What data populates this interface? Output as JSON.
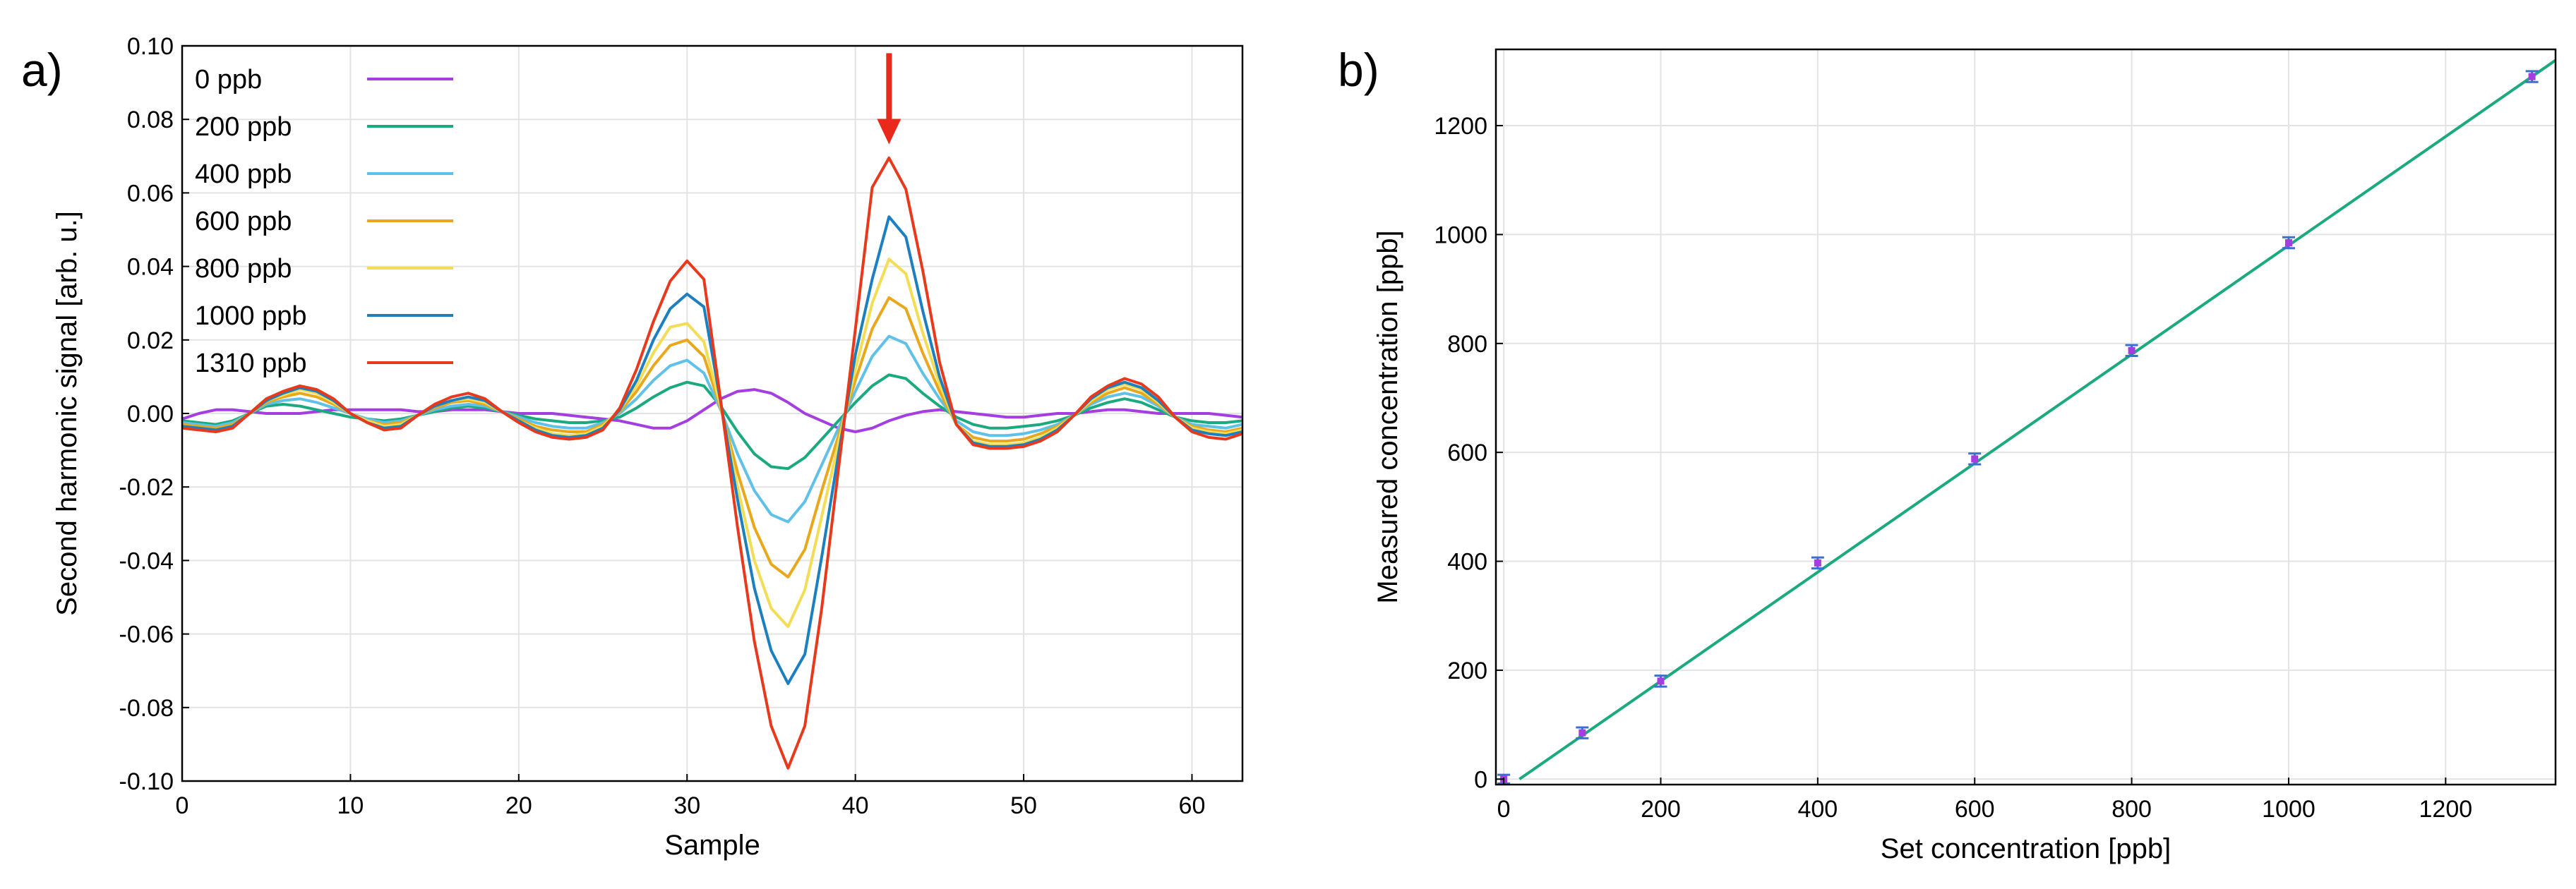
{
  "chart_data": [
    {
      "type": "line",
      "panel_label": "a)",
      "title": "",
      "xlabel": "Sample",
      "ylabel": "Second harmonic signal [arb. u.]",
      "xlim": [
        0,
        63
      ],
      "ylim": [
        -0.1,
        0.1
      ],
      "xticks": [
        0,
        10,
        20,
        30,
        40,
        50,
        60
      ],
      "xtick_labels": [
        "0",
        "10",
        "20",
        "30",
        "40",
        "50",
        "60"
      ],
      "yticks": [
        -0.1,
        -0.08,
        -0.06,
        -0.04,
        -0.02,
        0.0,
        0.02,
        0.04,
        0.06,
        0.08,
        0.1
      ],
      "ytick_labels": [
        "-0.10",
        "-0.08",
        "-0.06",
        "-0.04",
        "-0.02",
        "0.00",
        "0.02",
        "0.04",
        "0.06",
        "0.08",
        "0.10"
      ],
      "grid": true,
      "legend_position": "top-left",
      "annotation": {
        "type": "arrow",
        "color": "#e8291c",
        "x": 42,
        "y_from": 0.098,
        "y_to": 0.074
      },
      "x": [
        0,
        1,
        2,
        3,
        4,
        5,
        6,
        7,
        8,
        9,
        10,
        11,
        12,
        13,
        14,
        15,
        16,
        17,
        18,
        19,
        20,
        21,
        22,
        23,
        24,
        25,
        26,
        27,
        28,
        29,
        30,
        31,
        32,
        33,
        34,
        35,
        36,
        37,
        38,
        39,
        40,
        41,
        42,
        43,
        44,
        45,
        46,
        47,
        48,
        49,
        50,
        51,
        52,
        53,
        54,
        55,
        56,
        57,
        58,
        59,
        60,
        61,
        62,
        63
      ],
      "series": [
        {
          "name": "0 ppb",
          "color": "#a53ee0",
          "values": [
            -0.0015,
            0.0,
            0.001,
            0.001,
            0.0005,
            0.0,
            0.0,
            0.0,
            0.0005,
            0.001,
            0.001,
            0.001,
            0.001,
            0.001,
            0.0005,
            0.0005,
            0.001,
            0.001,
            0.001,
            0.0005,
            0.0,
            0.0,
            0.0,
            -0.0005,
            -0.001,
            -0.0015,
            -0.002,
            -0.003,
            -0.004,
            -0.004,
            -0.002,
            0.001,
            0.004,
            0.006,
            0.0065,
            0.0055,
            0.003,
            0.0,
            -0.002,
            -0.004,
            -0.005,
            -0.004,
            -0.002,
            -0.0005,
            0.0005,
            0.001,
            0.0005,
            0.0,
            -0.0005,
            -0.001,
            -0.001,
            -0.0005,
            0.0,
            0.0,
            0.0005,
            0.001,
            0.001,
            0.0005,
            0.0,
            0.0,
            0.0,
            0.0,
            -0.0005,
            -0.001
          ]
        },
        {
          "name": "200 ppb",
          "color": "#1ba97f",
          "values": [
            -0.002,
            -0.0025,
            -0.003,
            -0.002,
            0.0,
            0.002,
            0.0025,
            0.002,
            0.001,
            0.0,
            -0.001,
            -0.0015,
            -0.002,
            -0.0015,
            -0.0005,
            0.0005,
            0.0015,
            0.002,
            0.0015,
            0.0005,
            -0.0005,
            -0.0015,
            -0.002,
            -0.0025,
            -0.0025,
            -0.002,
            -0.001,
            0.0015,
            0.0045,
            0.007,
            0.0085,
            0.0075,
            0.002,
            -0.005,
            -0.011,
            -0.0145,
            -0.015,
            -0.012,
            -0.007,
            -0.002,
            0.003,
            0.0075,
            0.0105,
            0.0095,
            0.0055,
            0.002,
            -0.001,
            -0.003,
            -0.004,
            -0.004,
            -0.0035,
            -0.003,
            -0.002,
            -0.0005,
            0.0015,
            0.003,
            0.004,
            0.003,
            0.001,
            -0.001,
            -0.002,
            -0.0025,
            -0.0025,
            -0.002
          ]
        },
        {
          "name": "400 ppb",
          "color": "#5fc0e8",
          "values": [
            -0.0025,
            -0.003,
            -0.0035,
            -0.0025,
            0.0,
            0.0025,
            0.0035,
            0.004,
            0.003,
            0.0015,
            0.0,
            -0.0015,
            -0.0025,
            -0.002,
            -0.0005,
            0.001,
            0.002,
            0.0025,
            0.002,
            0.0005,
            -0.001,
            -0.0025,
            -0.0035,
            -0.004,
            -0.004,
            -0.0025,
            0.0,
            0.004,
            0.009,
            0.013,
            0.0145,
            0.011,
            0.001,
            -0.011,
            -0.021,
            -0.0275,
            -0.0295,
            -0.024,
            -0.014,
            -0.004,
            0.006,
            0.0155,
            0.021,
            0.019,
            0.011,
            0.004,
            -0.002,
            -0.005,
            -0.006,
            -0.006,
            -0.0055,
            -0.0045,
            -0.003,
            -0.0005,
            0.0025,
            0.0045,
            0.0055,
            0.0045,
            0.002,
            -0.001,
            -0.003,
            -0.0035,
            -0.004,
            -0.003
          ]
        },
        {
          "name": "600 ppb",
          "color": "#e9a81c",
          "values": [
            -0.003,
            -0.0035,
            -0.004,
            -0.003,
            0.0,
            0.003,
            0.0045,
            0.0055,
            0.0045,
            0.0025,
            0.0,
            -0.002,
            -0.003,
            -0.0025,
            -0.0005,
            0.0015,
            0.003,
            0.0035,
            0.0025,
            0.0005,
            -0.0015,
            -0.0035,
            -0.0045,
            -0.005,
            -0.005,
            -0.003,
            0.0005,
            0.006,
            0.013,
            0.0185,
            0.02,
            0.0155,
            0.0015,
            -0.016,
            -0.031,
            -0.041,
            -0.0445,
            -0.037,
            -0.021,
            -0.006,
            0.009,
            0.023,
            0.0315,
            0.0285,
            0.0165,
            0.006,
            -0.003,
            -0.0065,
            -0.0075,
            -0.0075,
            -0.007,
            -0.0055,
            -0.0035,
            -0.0005,
            0.003,
            0.0055,
            0.007,
            0.0055,
            0.0025,
            -0.001,
            -0.0035,
            -0.0045,
            -0.005,
            -0.004
          ]
        },
        {
          "name": "800 ppb",
          "color": "#f2dd55",
          "values": [
            -0.0035,
            -0.004,
            -0.0045,
            -0.0035,
            0.0,
            0.0035,
            0.005,
            0.0065,
            0.0055,
            0.003,
            0.0,
            -0.002,
            -0.0035,
            -0.003,
            -0.0005,
            0.002,
            0.0035,
            0.004,
            0.003,
            0.0005,
            -0.002,
            -0.004,
            -0.0055,
            -0.006,
            -0.0055,
            -0.0035,
            0.001,
            0.0075,
            0.0165,
            0.0235,
            0.0245,
            0.0195,
            0.002,
            -0.02,
            -0.04,
            -0.053,
            -0.058,
            -0.048,
            -0.028,
            -0.008,
            0.012,
            0.03,
            0.042,
            0.038,
            0.022,
            0.008,
            -0.003,
            -0.0075,
            -0.0085,
            -0.0085,
            -0.008,
            -0.0065,
            -0.004,
            -0.0005,
            0.0035,
            0.0065,
            0.008,
            0.0065,
            0.003,
            -0.001,
            -0.004,
            -0.005,
            -0.0055,
            -0.0045
          ]
        },
        {
          "name": "1000 ppb",
          "color": "#1c7fc0",
          "values": [
            -0.0035,
            -0.004,
            -0.0045,
            -0.0035,
            0.0,
            0.0035,
            0.0055,
            0.007,
            0.006,
            0.0035,
            0.0,
            -0.0025,
            -0.004,
            -0.0035,
            -0.0005,
            0.002,
            0.0035,
            0.0045,
            0.0035,
            0.0005,
            -0.002,
            -0.0045,
            -0.006,
            -0.0065,
            -0.006,
            -0.004,
            0.001,
            0.009,
            0.02,
            0.0285,
            0.0325,
            0.029,
            0.003,
            -0.0235,
            -0.0475,
            -0.0645,
            -0.0735,
            -0.0655,
            -0.039,
            -0.011,
            0.016,
            0.0365,
            0.0535,
            0.048,
            0.028,
            0.01,
            -0.003,
            -0.008,
            -0.009,
            -0.009,
            -0.0085,
            -0.007,
            -0.0045,
            -0.0005,
            0.004,
            0.007,
            0.0085,
            0.007,
            0.0035,
            -0.001,
            -0.0045,
            -0.0055,
            -0.006,
            -0.005
          ]
        },
        {
          "name": "1310 ppb",
          "color": "#e8391c",
          "values": [
            -0.004,
            -0.0045,
            -0.005,
            -0.004,
            0.0,
            0.004,
            0.006,
            0.0075,
            0.0065,
            0.004,
            0.0,
            -0.0025,
            -0.0045,
            -0.004,
            -0.0005,
            0.0025,
            0.0045,
            0.0055,
            0.004,
            0.0005,
            -0.0025,
            -0.005,
            -0.0065,
            -0.007,
            -0.0065,
            -0.0045,
            0.0015,
            0.012,
            0.025,
            0.036,
            0.0415,
            0.0365,
            0.0035,
            -0.031,
            -0.062,
            -0.085,
            -0.0965,
            -0.085,
            -0.053,
            -0.015,
            0.023,
            0.0615,
            0.0695,
            0.061,
            0.039,
            0.014,
            -0.003,
            -0.0085,
            -0.0095,
            -0.0095,
            -0.009,
            -0.0075,
            -0.005,
            -0.0005,
            0.0045,
            0.0075,
            0.0095,
            0.008,
            0.0045,
            -0.001,
            -0.005,
            -0.0065,
            -0.007,
            -0.0055
          ]
        }
      ]
    },
    {
      "type": "scatter",
      "panel_label": "b)",
      "title": "",
      "xlabel": "Set concentration [ppb]",
      "ylabel": "Measured concentration [ppb]",
      "xlim": [
        -10,
        1340
      ],
      "ylim": [
        -10,
        1340
      ],
      "xticks": [
        0,
        200,
        400,
        600,
        800,
        1000,
        1200
      ],
      "xtick_labels": [
        "0",
        "200",
        "400",
        "600",
        "800",
        "1000",
        "1200"
      ],
      "yticks": [
        0,
        200,
        400,
        600,
        800,
        1000,
        1200
      ],
      "ytick_labels": [
        "0",
        "200",
        "400",
        "600",
        "800",
        "1000",
        "1200"
      ],
      "grid": true,
      "marker_color": "#a53ee0",
      "errorbar_color": "#3b6fd1",
      "points": [
        {
          "x": 0,
          "y": 0,
          "err": 8
        },
        {
          "x": 100,
          "y": 85,
          "err": 10
        },
        {
          "x": 200,
          "y": 180,
          "err": 10
        },
        {
          "x": 400,
          "y": 397,
          "err": 10
        },
        {
          "x": 600,
          "y": 588,
          "err": 10
        },
        {
          "x": 800,
          "y": 787,
          "err": 10
        },
        {
          "x": 1000,
          "y": 985,
          "err": 10
        },
        {
          "x": 1310,
          "y": 1290,
          "err": 10
        }
      ],
      "fit": {
        "color": "#1ba97f",
        "slope": 1.0,
        "intercept": -20
      }
    }
  ]
}
